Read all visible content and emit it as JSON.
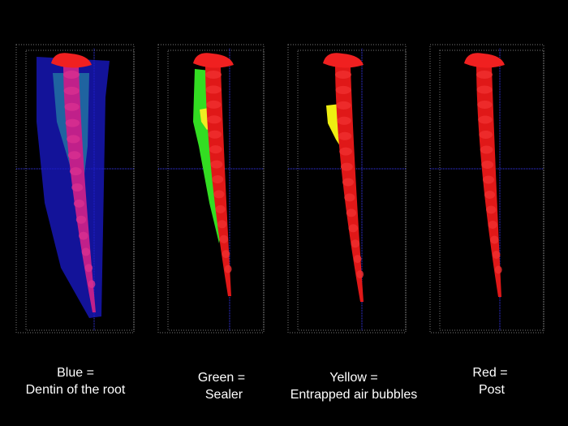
{
  "panels": [
    {
      "lines": [
        "Blue =",
        "Dentin of the root"
      ]
    },
    {
      "lines": [
        "Green =",
        "Sealer"
      ]
    },
    {
      "lines": [
        "Yellow =",
        "Entrapped air bubbles"
      ]
    },
    {
      "lines": [
        "Red =",
        "Post"
      ]
    }
  ]
}
